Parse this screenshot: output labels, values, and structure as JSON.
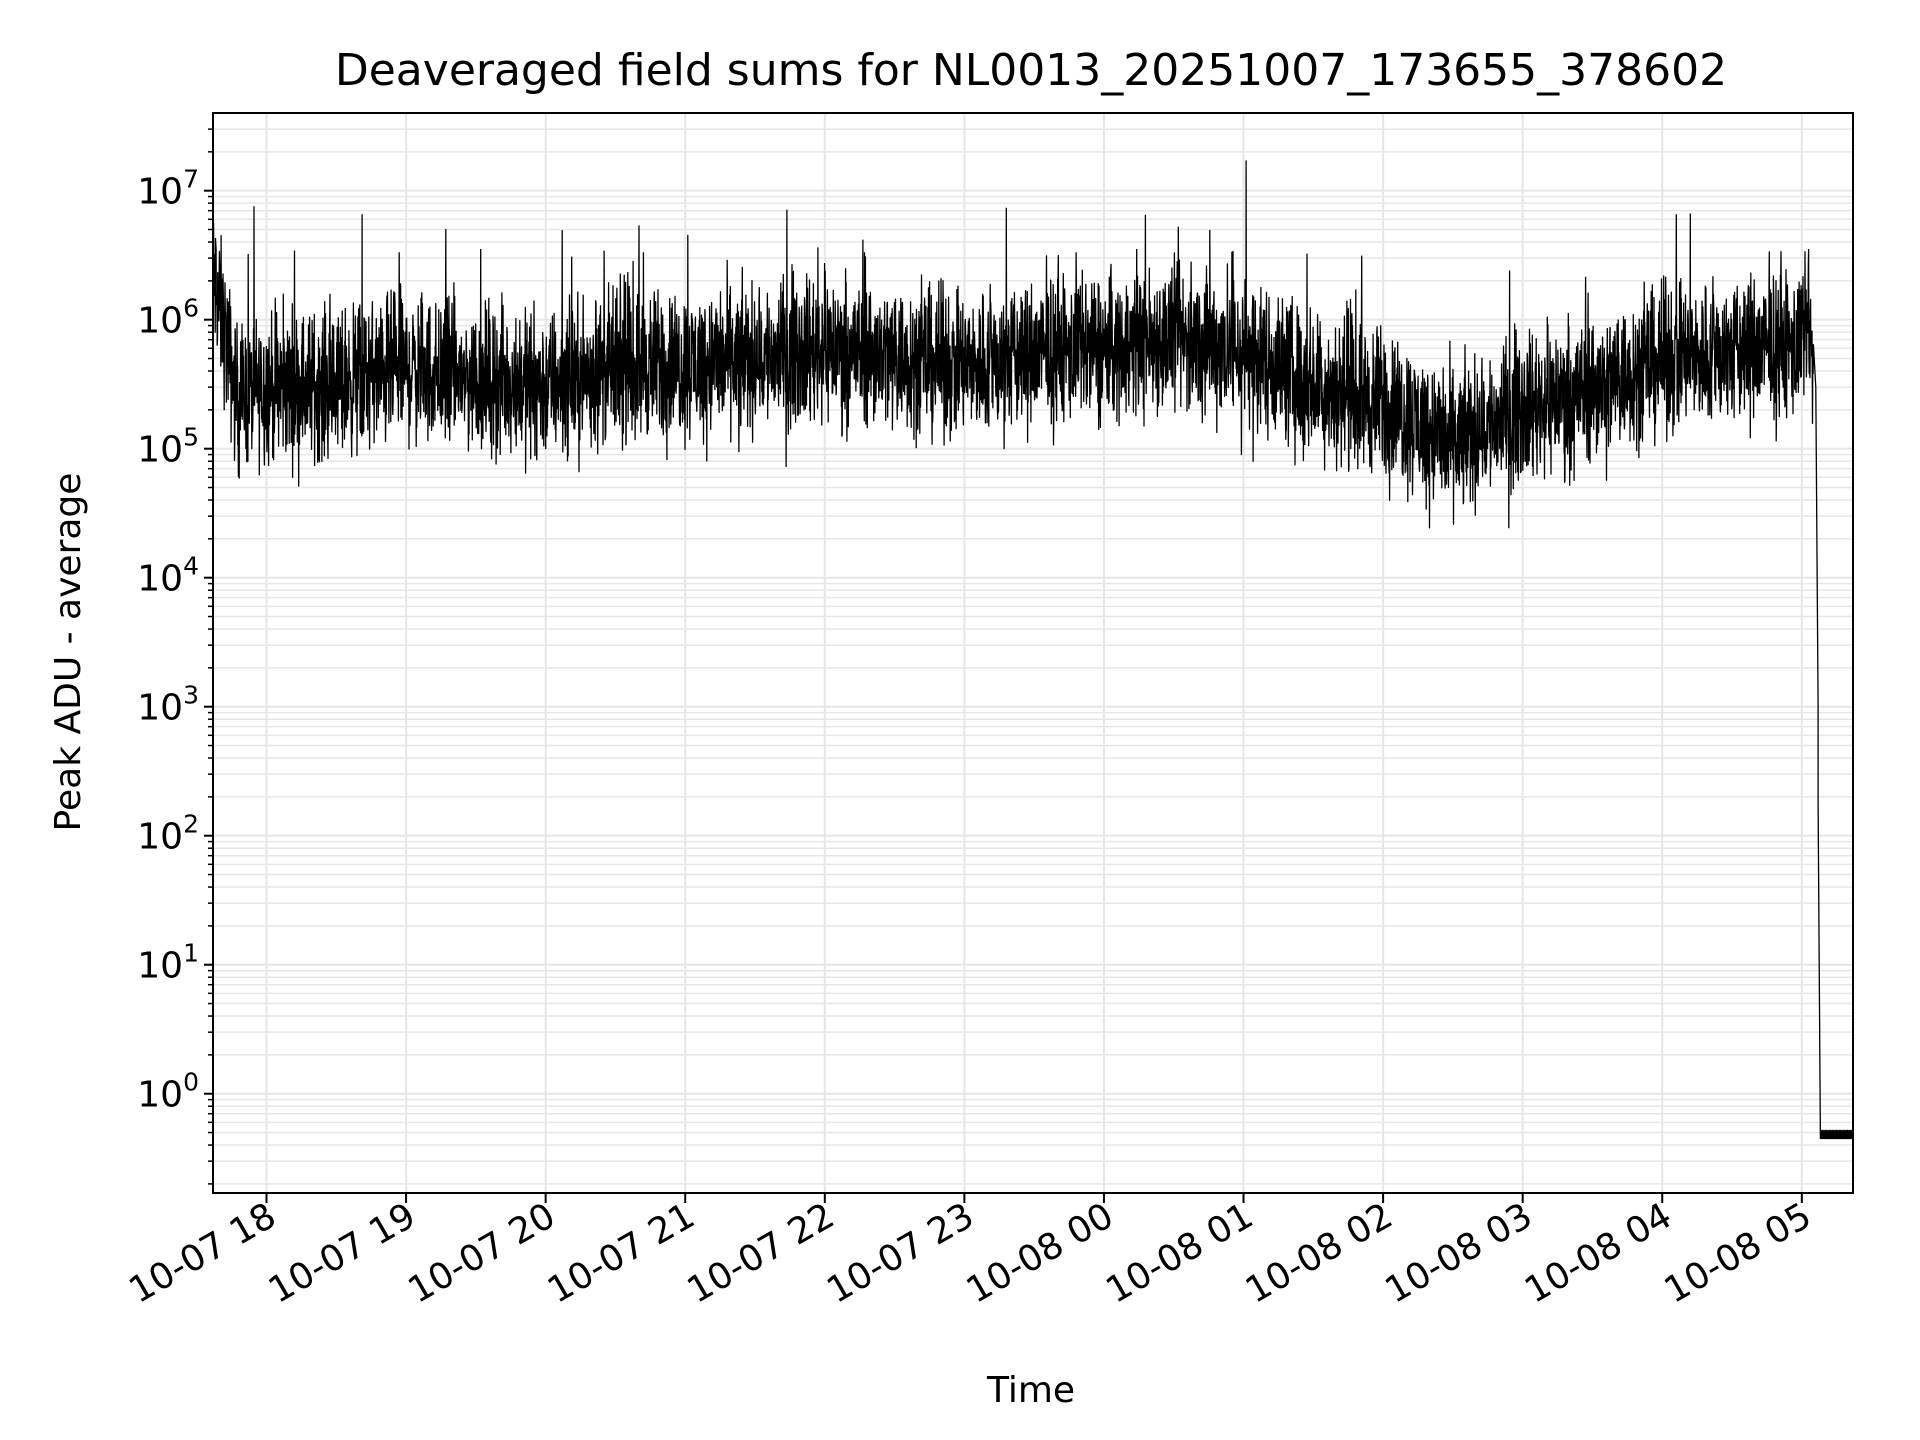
{
  "chart_data": {
    "type": "line",
    "title": "Deaveraged field sums for NL0013_20251007_173655_378602",
    "xlabel": "Time",
    "ylabel": "Peak ADU - average",
    "yscale": "log",
    "grid": true,
    "line_color": "#000000",
    "grid_color": "#e6e6e6",
    "xlim": [
      "2025-10-07 17:37",
      "2025-10-08 05:22"
    ],
    "ylim": [
      0.17,
      40000000
    ],
    "x_ticks": [
      {
        "value": "2025-10-07 18:00",
        "label": "10-07 18"
      },
      {
        "value": "2025-10-07 19:00",
        "label": "10-07 19"
      },
      {
        "value": "2025-10-07 20:00",
        "label": "10-07 20"
      },
      {
        "value": "2025-10-07 21:00",
        "label": "10-07 21"
      },
      {
        "value": "2025-10-07 22:00",
        "label": "10-07 22"
      },
      {
        "value": "2025-10-07 23:00",
        "label": "10-07 23"
      },
      {
        "value": "2025-10-08 00:00",
        "label": "10-08 00"
      },
      {
        "value": "2025-10-08 01:00",
        "label": "10-08 01"
      },
      {
        "value": "2025-10-08 02:00",
        "label": "10-08 02"
      },
      {
        "value": "2025-10-08 03:00",
        "label": "10-08 03"
      },
      {
        "value": "2025-10-08 04:00",
        "label": "10-08 04"
      },
      {
        "value": "2025-10-08 05:00",
        "label": "10-08 05"
      }
    ],
    "y_ticks": [
      {
        "value": 1,
        "base": "10",
        "exp": "0"
      },
      {
        "value": 10,
        "base": "10",
        "exp": "1"
      },
      {
        "value": 100,
        "base": "10",
        "exp": "2"
      },
      {
        "value": 1000,
        "base": "10",
        "exp": "3"
      },
      {
        "value": 10000,
        "base": "10",
        "exp": "4"
      },
      {
        "value": 100000,
        "base": "10",
        "exp": "5"
      },
      {
        "value": 1000000,
        "base": "10",
        "exp": "6"
      },
      {
        "value": 10000000,
        "base": "10",
        "exp": "7"
      }
    ],
    "series": [
      {
        "values": [
          [
            "2025-10-07 17:37",
            2200000
          ],
          [
            "2025-10-07 17:42",
            800000
          ],
          [
            "2025-10-07 17:47",
            250000
          ],
          [
            "2025-10-07 18:00",
            300000
          ],
          [
            "2025-10-07 18:30",
            320000
          ],
          [
            "2025-10-07 19:00",
            420000
          ],
          [
            "2025-10-07 19:30",
            350000
          ],
          [
            "2025-10-07 20:00",
            310000
          ],
          [
            "2025-10-07 20:30",
            430000
          ],
          [
            "2025-10-07 21:00",
            450000
          ],
          [
            "2025-10-07 21:30",
            500000
          ],
          [
            "2025-10-07 22:00",
            620000
          ],
          [
            "2025-10-07 22:30",
            520000
          ],
          [
            "2025-10-07 23:00",
            430000
          ],
          [
            "2025-10-07 23:30",
            540000
          ],
          [
            "2025-10-08 00:00",
            600000
          ],
          [
            "2025-10-08 00:30",
            720000
          ],
          [
            "2025-10-08 01:00",
            600000
          ],
          [
            "2025-10-08 01:30",
            320000
          ],
          [
            "2025-10-08 02:00",
            230000
          ],
          [
            "2025-10-08 02:30",
            110000
          ],
          [
            "2025-10-08 03:00",
            210000
          ],
          [
            "2025-10-08 03:30",
            300000
          ],
          [
            "2025-10-08 04:00",
            480000
          ],
          [
            "2025-10-08 04:30",
            560000
          ],
          [
            "2025-10-08 05:00",
            620000
          ],
          [
            "2025-10-08 05:03",
            1100000
          ],
          [
            "2025-10-08 05:06",
            200000
          ],
          [
            "2025-10-08 05:07",
            1000
          ],
          [
            "2025-10-08 05:08",
            0.45
          ],
          [
            "2025-10-08 05:22",
            0.45
          ]
        ]
      }
    ],
    "spikes": [
      [
        "2025-10-07 17:52",
        3200000
      ],
      [
        "2025-10-07 18:12",
        3400000
      ],
      [
        "2025-10-07 18:41",
        6500000
      ],
      [
        "2025-10-07 18:57",
        3300000
      ],
      [
        "2025-10-07 19:17",
        5000000
      ],
      [
        "2025-10-07 19:32",
        3500000
      ],
      [
        "2025-10-07 20:07",
        4900000
      ],
      [
        "2025-10-07 20:25",
        3400000
      ],
      [
        "2025-10-07 20:42",
        3300000
      ],
      [
        "2025-10-07 21:01",
        4500000
      ],
      [
        "2025-10-07 21:57",
        3600000
      ],
      [
        "2025-10-07 22:17",
        3300000
      ],
      [
        "2025-10-07 23:18",
        7300000
      ],
      [
        "2025-10-07 23:48",
        3300000
      ],
      [
        "2025-10-08 00:14",
        3500000
      ],
      [
        "2025-10-08 00:53",
        2700000
      ],
      [
        "2025-10-08 01:01",
        17000000
      ],
      [
        "2025-10-08 04:06",
        6500000
      ],
      [
        "2025-10-08 04:12",
        6600000
      ],
      [
        "2025-10-08 04:38",
        2300000
      ]
    ],
    "dips": [
      [
        "2025-10-07 18:22",
        120000
      ],
      [
        "2025-10-07 19:27",
        130000
      ],
      [
        "2025-10-07 19:56",
        90000
      ],
      [
        "2025-10-07 21:23",
        95000
      ],
      [
        "2025-10-07 22:29",
        140000
      ],
      [
        "2025-10-07 23:17",
        100000
      ],
      [
        "2025-10-08 00:59",
        90000
      ],
      [
        "2025-10-08 01:04",
        80000
      ],
      [
        "2025-10-08 01:22",
        75000
      ],
      [
        "2025-10-08 01:55",
        65000
      ],
      [
        "2025-10-08 02:28",
        50000
      ],
      [
        "2025-10-08 02:40",
        55000
      ],
      [
        "2025-10-08 03:22",
        57000
      ],
      [
        "2025-10-08 03:36",
        57000
      ]
    ]
  }
}
